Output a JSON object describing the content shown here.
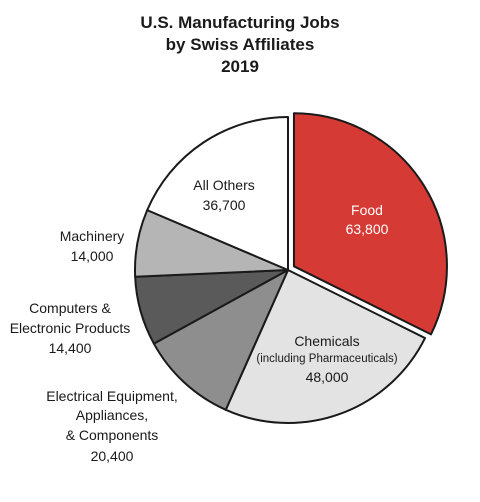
{
  "chart_data": {
    "type": "pie",
    "title": [
      "U.S. Manufacturing Jobs",
      "by Swiss Affiliates",
      "2019"
    ],
    "slices": [
      {
        "label": "Food",
        "sublabel": "",
        "value": 63800,
        "value_text": "63,800",
        "color": "#d63a35",
        "exploded": true
      },
      {
        "label": "Chemicals",
        "sublabel": "(including Pharmaceuticals)",
        "value": 48000,
        "value_text": "48,000",
        "color": "#e3e3e3",
        "exploded": false
      },
      {
        "label": "Electrical Equipment, Appliances, & Components",
        "sublabel": "",
        "value": 20400,
        "value_text": "20,400",
        "color": "#8e8e8e",
        "exploded": false
      },
      {
        "label": "Computers & Electronic Products",
        "sublabel": "",
        "value": 14400,
        "value_text": "14,400",
        "color": "#5a5a5a",
        "exploded": false
      },
      {
        "label": "Machinery",
        "sublabel": "",
        "value": 14000,
        "value_text": "14,000",
        "color": "#b5b5b5",
        "exploded": false
      },
      {
        "label": "All Others",
        "sublabel": "",
        "value": 36700,
        "value_text": "36,700",
        "color": "#ffffff",
        "exploded": false
      }
    ]
  },
  "labels": {
    "food": [
      "Food",
      "63,800"
    ],
    "chemicals": [
      "Chemicals",
      "(including Pharmaceuticals)",
      "48,000"
    ],
    "electrical": [
      "Electrical Equipment,",
      "Appliances,",
      "& Components",
      "20,400"
    ],
    "computers": [
      "Computers &",
      "Electronic Products",
      "14,400"
    ],
    "machinery": [
      "Machinery",
      "14,000"
    ],
    "others": [
      "All Others",
      "36,700"
    ]
  }
}
